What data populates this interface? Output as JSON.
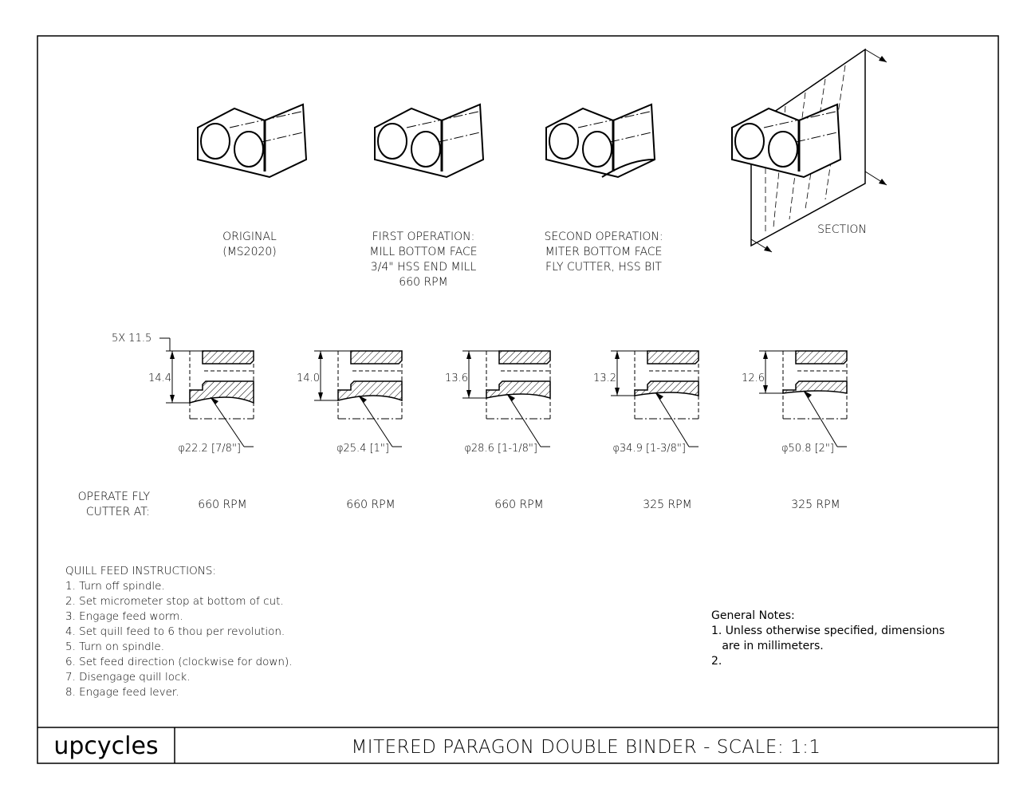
{
  "views": [
    {
      "lines": [
        "ORIGINAL",
        "(MS2020)"
      ]
    },
    {
      "lines": [
        "FIRST OPERATION:",
        "MILL BOTTOM FACE",
        "3/4\" HSS END MILL",
        "660 RPM"
      ]
    },
    {
      "lines": [
        "SECOND OPERATION:",
        "MITER BOTTOM FACE",
        "FLY CUTTER, HSS BIT"
      ]
    },
    {
      "lines": [
        "SECTION"
      ]
    }
  ],
  "common_dim": "5X 11.5",
  "sections": [
    {
      "height": "14.4",
      "diameter": "φ22.2 [7/8\"]",
      "rpm": "660 RPM"
    },
    {
      "height": "14.0",
      "diameter": "φ25.4 [1\"]",
      "rpm": "660 RPM"
    },
    {
      "height": "13.6",
      "diameter": "φ28.6 [1-1/8\"]",
      "rpm": "660 RPM"
    },
    {
      "height": "13.2",
      "diameter": "φ34.9 [1-3/8\"]",
      "rpm": "325 RPM"
    },
    {
      "height": "12.6",
      "diameter": "φ50.8 [2\"]",
      "rpm": "325 RPM"
    }
  ],
  "operate_label": [
    "OPERATE FLY",
    "CUTTER AT:"
  ],
  "quill": {
    "title": "QUILL FEED INSTRUCTIONS:",
    "steps": [
      "1. Turn off spindle.",
      "2. Set micrometer stop at bottom of cut.",
      "3. Engage feed worm.",
      "4. Set quill feed to 6 thou per revolution.",
      "5. Turn on spindle.",
      "6. Set feed direction (clockwise for down).",
      "7. Disengage quill lock.",
      "8. Engage feed lever."
    ]
  },
  "general_notes": {
    "title": "General Notes:",
    "items": [
      "1. Unless otherwise specified, dimensions",
      "   are in millimeters.",
      "2."
    ]
  },
  "title_block": {
    "logo": "upcycles",
    "title": "MITERED PARAGON DOUBLE BINDER - SCALE: 1:1"
  }
}
